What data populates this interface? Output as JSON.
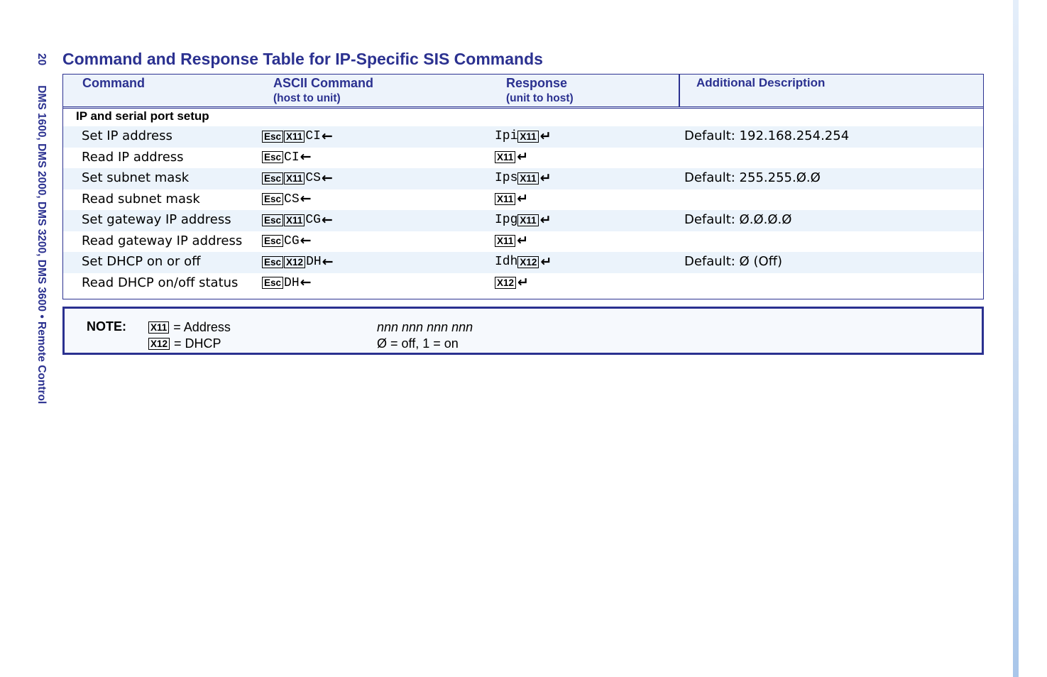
{
  "side": {
    "page_number": "20",
    "running_title": "DMS 1600, DMS 2000, DMS 3200, DMS 3600 • Remote Control"
  },
  "title": "Command and Response Table for IP-Specific SIS Commands",
  "headers": {
    "command": "Command",
    "ascii": "ASCII Command",
    "ascii_sub": "(host to unit)",
    "response": "Response",
    "response_sub": "(unit to host)",
    "description": "Additional Description"
  },
  "section": "IP and serial port setup",
  "rows": [
    {
      "command": "Set IP address",
      "ascii_keys": [
        "Esc",
        "X11"
      ],
      "ascii_text": "CI",
      "resp_text": "Ipi",
      "resp_key": "X11",
      "description": "Default: 192.168.254.254"
    },
    {
      "command": "Read IP address",
      "ascii_keys": [
        "Esc"
      ],
      "ascii_text": "CI",
      "resp_text": "",
      "resp_key": "X11",
      "description": ""
    },
    {
      "command": "Set subnet mask",
      "ascii_keys": [
        "Esc",
        "X11"
      ],
      "ascii_text": "CS",
      "resp_text": "Ips",
      "resp_key": "X11",
      "description": "Default: 255.255.Ø.Ø"
    },
    {
      "command": "Read subnet mask",
      "ascii_keys": [
        "Esc"
      ],
      "ascii_text": "CS",
      "resp_text": "",
      "resp_key": "X11",
      "description": ""
    },
    {
      "command": "Set gateway IP address",
      "ascii_keys": [
        "Esc",
        "X11"
      ],
      "ascii_text": "CG",
      "resp_text": "Ipg",
      "resp_key": "X11",
      "description": "Default: Ø.Ø.Ø.Ø"
    },
    {
      "command": "Read gateway IP address",
      "ascii_keys": [
        "Esc"
      ],
      "ascii_text": "CG",
      "resp_text": "",
      "resp_key": "X11",
      "description": ""
    },
    {
      "command": "Set DHCP on or off",
      "ascii_keys": [
        "Esc",
        "X12"
      ],
      "ascii_text": "DH",
      "resp_text": "Idh",
      "resp_key": "X12",
      "description": "Default: Ø (Off)"
    },
    {
      "command": "Read DHCP on/off status",
      "ascii_keys": [
        "Esc"
      ],
      "ascii_text": "DH",
      "resp_text": "",
      "resp_key": "X12",
      "description": ""
    }
  ],
  "symbols": {
    "arrow": "←",
    "enter": "↵"
  },
  "note": {
    "label": "NOTE:",
    "items": [
      {
        "key": "X11",
        "meaning": "= Address",
        "value": "nnn nnn nnn nnn"
      },
      {
        "key": "X12",
        "meaning": "= DHCP",
        "value": "Ø = off, 1 = on"
      }
    ]
  },
  "colors": {
    "accent": "#2b3190",
    "shade": "#ebf3fb"
  }
}
